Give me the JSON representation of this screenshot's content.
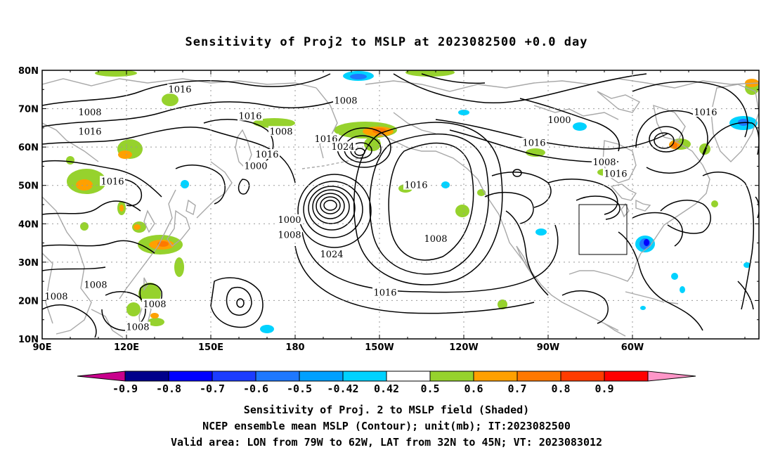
{
  "title": "Sensitivity of Proj2 to MSLP at 2023082500 +0.0 day",
  "map": {
    "lat_labels": [
      "80N",
      "70N",
      "60N",
      "50N",
      "40N",
      "30N",
      "20N",
      "10N"
    ],
    "lon_labels": [
      "90E",
      "120E",
      "150E",
      "180",
      "150W",
      "120W",
      "90W",
      "60W"
    ],
    "valid_box": {
      "lon_from": "79W",
      "lon_to": "62W",
      "lat_from": "32N",
      "lat_to": "45N"
    },
    "contour_labels": [
      {
        "text": "1016",
        "lon": 139,
        "lat": 75
      },
      {
        "text": "1008",
        "lon": 107,
        "lat": 69
      },
      {
        "text": "1016",
        "lon": 107,
        "lat": 64
      },
      {
        "text": "1016",
        "lon": 164,
        "lat": 68
      },
      {
        "text": "1008",
        "lon": 175,
        "lat": 64
      },
      {
        "text": "1016",
        "lon": 191,
        "lat": 62
      },
      {
        "text": "1024",
        "lon": 197,
        "lat": 60
      },
      {
        "text": "1016",
        "lon": 170,
        "lat": 58
      },
      {
        "text": "1000",
        "lon": 166,
        "lat": 55
      },
      {
        "text": "1016",
        "lon": 115,
        "lat": 51
      },
      {
        "text": "1008",
        "lon": 198,
        "lat": 72
      },
      {
        "text": "1000",
        "lon": 274,
        "lat": 67
      },
      {
        "text": "1016",
        "lon": 265,
        "lat": 61
      },
      {
        "text": "1008",
        "lon": 290,
        "lat": 56
      },
      {
        "text": "1016",
        "lon": 294,
        "lat": 53
      },
      {
        "text": "1016",
        "lon": 326,
        "lat": 69
      },
      {
        "text": "1016",
        "lon": 223,
        "lat": 50
      },
      {
        "text": "1000",
        "lon": 178,
        "lat": 41
      },
      {
        "text": "1008",
        "lon": 178,
        "lat": 37
      },
      {
        "text": "1008",
        "lon": 230,
        "lat": 36
      },
      {
        "text": "1024",
        "lon": 193,
        "lat": 32
      },
      {
        "text": "1016",
        "lon": 212,
        "lat": 22
      },
      {
        "text": "1008",
        "lon": 109,
        "lat": 24
      },
      {
        "text": "1008",
        "lon": 95,
        "lat": 21
      },
      {
        "text": "1008",
        "lon": 130,
        "lat": 19
      },
      {
        "text": "1008",
        "lon": 124,
        "lat": 13
      }
    ]
  },
  "colorbar": {
    "labels": [
      "-0.9",
      "-0.8",
      "-0.7",
      "-0.6",
      "-0.5",
      "-0.42",
      "0.42",
      "0.5",
      "0.6",
      "0.7",
      "0.8",
      "0.9"
    ],
    "colors": [
      "#00008b",
      "#0000ff",
      "#1c3cff",
      "#1e78ff",
      "#00a0ff",
      "#00d2ff",
      "#ffffff",
      "#96d22d",
      "#ffa000",
      "#ff7800",
      "#ff3c00",
      "#ff0000"
    ],
    "low_end_color": "#c8008c",
    "high_end_color": "#ff96c8"
  },
  "caption": {
    "line1": "Sensitivity of Proj. 2 to MSLP field (Shaded)",
    "line2": "NCEP ensemble mean MSLP (Contour); unit(mb); IT:2023082500",
    "line3": "Valid area: LON from 79W to 62W, LAT from 32N to 45N; VT: 2023083012"
  }
}
